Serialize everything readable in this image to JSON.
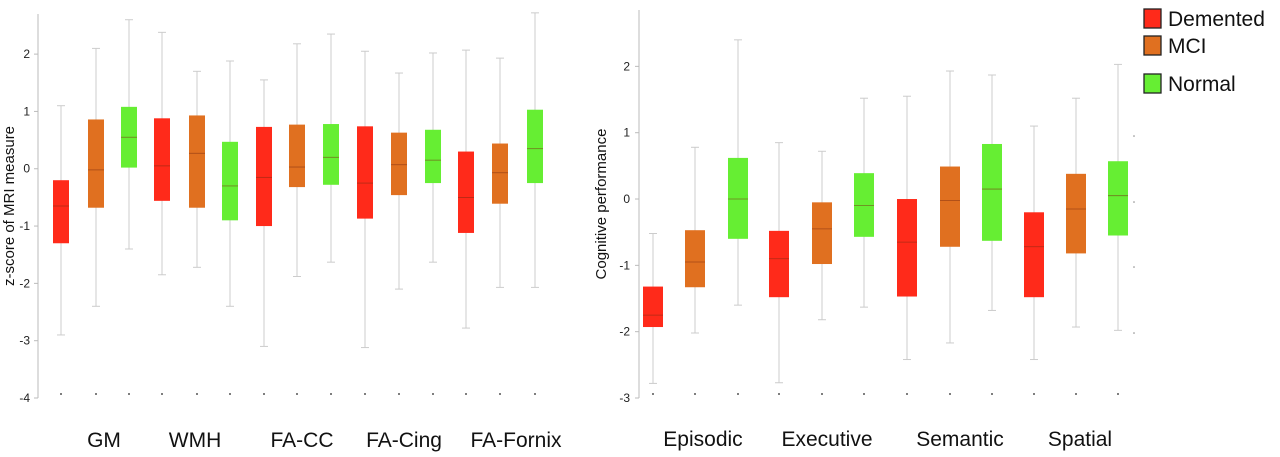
{
  "colors": {
    "Demented": "#ff2a1a",
    "MCI": "#e07020",
    "Normal": "#66ee33",
    "whisker": "#cccccc",
    "median": "#7a2a10"
  },
  "legend": [
    {
      "label": "Demented",
      "color": "#ff2a1a"
    },
    {
      "label": "MCI",
      "color": "#e07020"
    },
    {
      "label": "Normal",
      "color": "#66ee33"
    }
  ],
  "chart_data": [
    {
      "type": "boxplot",
      "ylabel": "z-score of MRI measure",
      "ylim": [
        -4,
        2.7
      ],
      "yticks": [
        2,
        1,
        0,
        -1,
        -2,
        -3,
        -4
      ],
      "categories": [
        "GM",
        "WMH",
        "FA-CC",
        "FA-Cing",
        "FA-Fornix"
      ],
      "groups": [
        "Demented",
        "MCI",
        "Normal"
      ],
      "boxes": [
        [
          {
            "group": "Demented",
            "min": -2.9,
            "q1": -1.3,
            "median": -0.65,
            "q3": -0.2,
            "max": 1.1
          },
          {
            "group": "MCI",
            "min": -2.4,
            "q1": -0.68,
            "median": -0.02,
            "q3": 0.86,
            "max": 2.1
          },
          {
            "group": "Normal",
            "min": -1.4,
            "q1": 0.02,
            "median": 0.55,
            "q3": 1.08,
            "max": 2.6
          }
        ],
        [
          {
            "group": "Demented",
            "min": -1.85,
            "q1": -0.56,
            "median": 0.05,
            "q3": 0.88,
            "max": 2.38
          },
          {
            "group": "MCI",
            "min": -1.72,
            "q1": -0.68,
            "median": 0.27,
            "q3": 0.93,
            "max": 1.7
          },
          {
            "group": "Normal",
            "min": -2.4,
            "q1": -0.9,
            "median": -0.3,
            "q3": 0.47,
            "max": 1.88
          }
        ],
        [
          {
            "group": "Demented",
            "min": -3.1,
            "q1": -1.0,
            "median": -0.15,
            "q3": 0.73,
            "max": 1.55
          },
          {
            "group": "MCI",
            "min": -1.88,
            "q1": -0.32,
            "median": 0.03,
            "q3": 0.77,
            "max": 2.18
          },
          {
            "group": "Normal",
            "min": -1.63,
            "q1": -0.28,
            "median": 0.2,
            "q3": 0.78,
            "max": 2.35
          }
        ],
        [
          {
            "group": "Demented",
            "min": -3.12,
            "q1": -0.87,
            "median": -0.25,
            "q3": 0.74,
            "max": 2.05
          },
          {
            "group": "MCI",
            "min": -2.1,
            "q1": -0.46,
            "median": 0.07,
            "q3": 0.63,
            "max": 1.67
          },
          {
            "group": "Normal",
            "min": -1.63,
            "q1": -0.25,
            "median": 0.15,
            "q3": 0.68,
            "max": 2.02
          }
        ],
        [
          {
            "group": "Demented",
            "min": -2.78,
            "q1": -1.12,
            "median": -0.5,
            "q3": 0.3,
            "max": 2.07
          },
          {
            "group": "MCI",
            "min": -2.07,
            "q1": -0.61,
            "median": -0.07,
            "q3": 0.44,
            "max": 1.93
          },
          {
            "group": "Normal",
            "min": -2.07,
            "q1": -0.25,
            "median": 0.35,
            "q3": 1.03,
            "max": 2.72
          }
        ]
      ]
    },
    {
      "type": "boxplot",
      "ylabel": "Cognitive performance",
      "ylim": [
        -3,
        2.85
      ],
      "yticks": [
        2,
        1,
        0,
        -1,
        -2,
        -3
      ],
      "categories": [
        "Episodic",
        "Executive",
        "Semantic",
        "Spatial"
      ],
      "groups": [
        "Demented",
        "MCI",
        "Normal"
      ],
      "boxes": [
        [
          {
            "group": "Demented",
            "min": -2.78,
            "q1": -1.93,
            "median": -1.75,
            "q3": -1.32,
            "max": -0.52
          },
          {
            "group": "MCI",
            "min": -2.02,
            "q1": -1.33,
            "median": -0.95,
            "q3": -0.47,
            "max": 0.78
          },
          {
            "group": "Normal",
            "min": -1.6,
            "q1": -0.6,
            "median": 0.0,
            "q3": 0.62,
            "max": 2.4
          }
        ],
        [
          {
            "group": "Demented",
            "min": -2.77,
            "q1": -1.48,
            "median": -0.9,
            "q3": -0.48,
            "max": 0.85
          },
          {
            "group": "MCI",
            "min": -1.82,
            "q1": -0.98,
            "median": -0.45,
            "q3": -0.05,
            "max": 0.72
          },
          {
            "group": "Normal",
            "min": -1.63,
            "q1": -0.57,
            "median": -0.1,
            "q3": 0.39,
            "max": 1.52
          }
        ],
        [
          {
            "group": "Demented",
            "min": -2.42,
            "q1": -1.47,
            "median": -0.65,
            "q3": 0.0,
            "max": 1.55
          },
          {
            "group": "MCI",
            "min": -2.17,
            "q1": -0.72,
            "median": -0.02,
            "q3": 0.49,
            "max": 1.93
          },
          {
            "group": "Normal",
            "min": -1.68,
            "q1": -0.63,
            "median": 0.15,
            "q3": 0.83,
            "max": 1.87
          }
        ],
        [
          {
            "group": "Demented",
            "min": -2.42,
            "q1": -1.48,
            "median": -0.72,
            "q3": -0.2,
            "max": 1.1
          },
          {
            "group": "MCI",
            "min": -1.93,
            "q1": -0.82,
            "median": -0.15,
            "q3": 0.38,
            "max": 1.52
          },
          {
            "group": "Normal",
            "min": -1.98,
            "q1": -0.55,
            "median": 0.05,
            "q3": 0.57,
            "max": 2.03
          }
        ]
      ]
    }
  ]
}
